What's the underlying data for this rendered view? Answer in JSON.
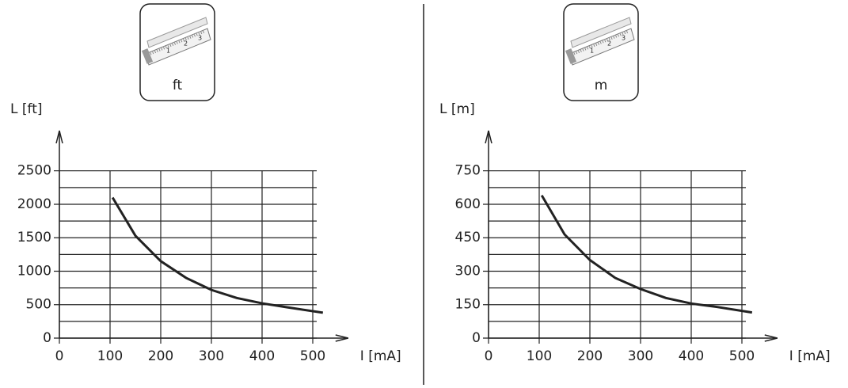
{
  "chart_data": [
    {
      "type": "line",
      "unit_label": "ft",
      "ylabel": "L [ft]",
      "xlabel": "I [mA]",
      "x": [
        105,
        150,
        200,
        250,
        300,
        350,
        400,
        450,
        520
      ],
      "values": [
        2100,
        1530,
        1150,
        900,
        720,
        600,
        520,
        460,
        380
      ],
      "color": "#222222",
      "xlim": [
        0,
        570
      ],
      "ylim": [
        0,
        3100
      ],
      "xticks": [
        0,
        100,
        200,
        300,
        400,
        500
      ],
      "yticks": [
        0,
        500,
        1000,
        1500,
        2000,
        2500
      ],
      "y_minor_ticks": [
        250,
        750,
        1250,
        1750,
        2250
      ],
      "grid": true
    },
    {
      "type": "line",
      "unit_label": "m",
      "ylabel": "L [m]",
      "xlabel": "I [mA]",
      "x": [
        105,
        150,
        200,
        250,
        300,
        350,
        400,
        450,
        520
      ],
      "values": [
        640,
        465,
        350,
        270,
        220,
        180,
        155,
        140,
        115
      ],
      "color": "#222222",
      "xlim": [
        0,
        570
      ],
      "ylim": [
        0,
        930
      ],
      "xticks": [
        0,
        100,
        200,
        300,
        400,
        500
      ],
      "yticks": [
        0,
        150,
        300,
        450,
        600,
        750
      ],
      "y_minor_ticks": [
        75,
        225,
        375,
        525,
        675
      ],
      "grid": true
    }
  ]
}
